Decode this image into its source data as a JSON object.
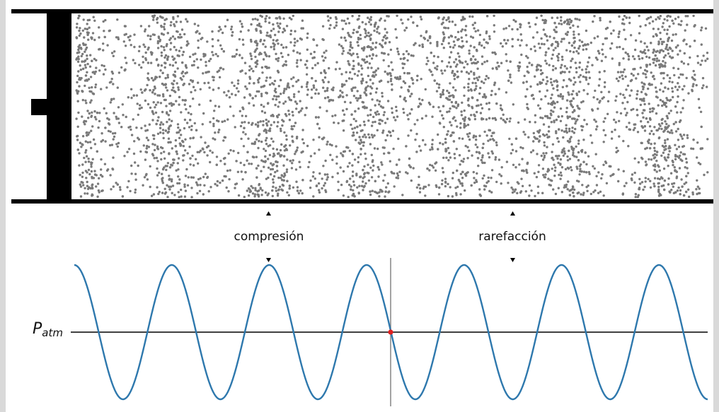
{
  "labels": {
    "compression": "compresión",
    "rarefaction": "rarefacción",
    "pressure_main": "P",
    "pressure_sub": "atm"
  },
  "colors": {
    "background": "#ffffff",
    "frame": "#d9d9d9",
    "tube": "#000000",
    "particles": "#7a7a7a",
    "wave": "#2e78ad",
    "baseline": "#000000",
    "cursor_line": "#8c8c8c",
    "marker": "#e02020"
  },
  "wave": {
    "cycles": 6.5,
    "shape": "sine"
  }
}
